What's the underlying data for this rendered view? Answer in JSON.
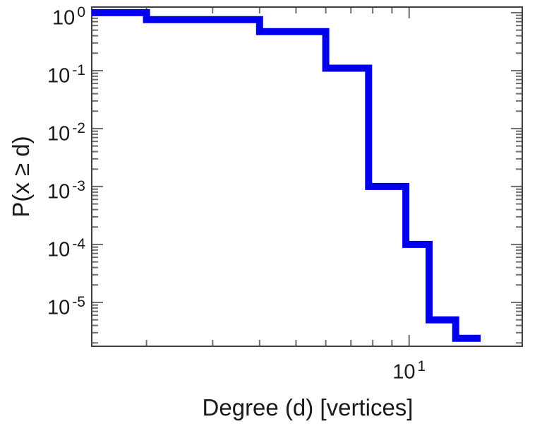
{
  "figure": {
    "background_color": "#ffffff",
    "text_color": "#1a1a1a"
  },
  "chart_data": {
    "type": "line",
    "line_style": "step-post",
    "title": "",
    "xlabel": "Degree (d) [vertices]",
    "ylabel": "P(x ≥ d)",
    "xscale": "log",
    "yscale": "log",
    "xlim": [
      1.43,
      20
    ],
    "ylim": [
      1.75e-06,
      1.25
    ],
    "grid": false,
    "legend": null,
    "line_color": "#0000ee",
    "line_width": 10,
    "frame_color": "#404040",
    "tick_color": "#6e6e6e",
    "x_ticks": [
      {
        "value": 10,
        "base": "10",
        "exp": "1"
      }
    ],
    "y_ticks": [
      {
        "value": 1,
        "base": "10",
        "exp": "0"
      },
      {
        "value": 0.1,
        "base": "10",
        "exp": "-1"
      },
      {
        "value": 0.01,
        "base": "10",
        "exp": "-2"
      },
      {
        "value": 0.001,
        "base": "10",
        "exp": "-3"
      },
      {
        "value": 0.0001,
        "base": "10",
        "exp": "-4"
      },
      {
        "value": 1e-05,
        "base": "10",
        "exp": "-5"
      }
    ],
    "steps": [
      {
        "x": 1.43,
        "p": 1.0
      },
      {
        "x": 2.0,
        "p": 0.76
      },
      {
        "x": 4.0,
        "p": 0.47
      },
      {
        "x": 6.0,
        "p": 0.11
      },
      {
        "x": 7.8,
        "p": 0.001
      },
      {
        "x": 9.8,
        "p": 0.0001
      },
      {
        "x": 11.3,
        "p": 5e-06
      },
      {
        "x": 13.3,
        "p": 2.4e-06
      }
    ],
    "end_x": 15.5
  }
}
